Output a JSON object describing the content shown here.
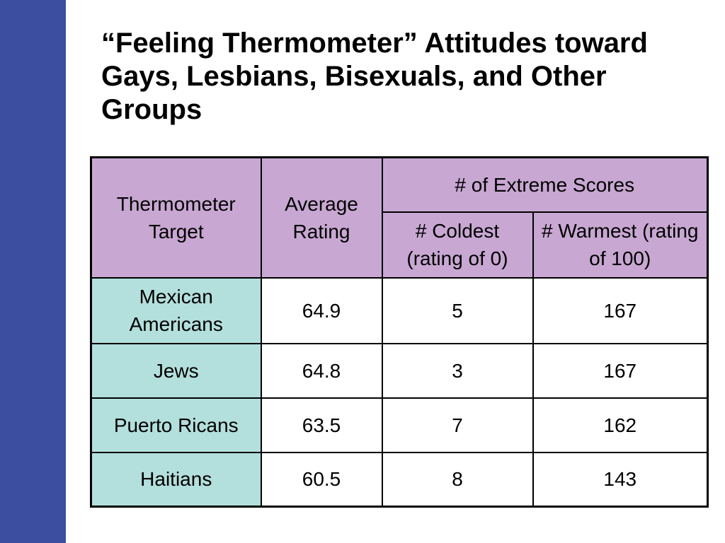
{
  "slide": {
    "title": "“Feeling Thermometer” Attitudes toward Gays, Lesbians, Bisexuals, and Other Groups"
  },
  "table": {
    "headers": {
      "target": "Thermometer Target",
      "average": "Average Rating",
      "extreme": "# of Extreme Scores",
      "coldest": "# Coldest (rating of 0)",
      "warmest": "# Warmest (rating of 100)"
    },
    "rows": [
      {
        "target": "Mexican Americans",
        "average": "64.9",
        "coldest": "5",
        "warmest": "167"
      },
      {
        "target": "Jews",
        "average": "64.8",
        "coldest": "3",
        "warmest": "167"
      },
      {
        "target": "Puerto Ricans",
        "average": "63.5",
        "coldest": "7",
        "warmest": "162"
      },
      {
        "target": "Haitians",
        "average": "60.5",
        "coldest": "8",
        "warmest": "143"
      }
    ]
  },
  "colors": {
    "sidebar": "#3b4ea0",
    "header_fill": "#c8a7d2",
    "row_header_fill": "#b3dfdc"
  }
}
